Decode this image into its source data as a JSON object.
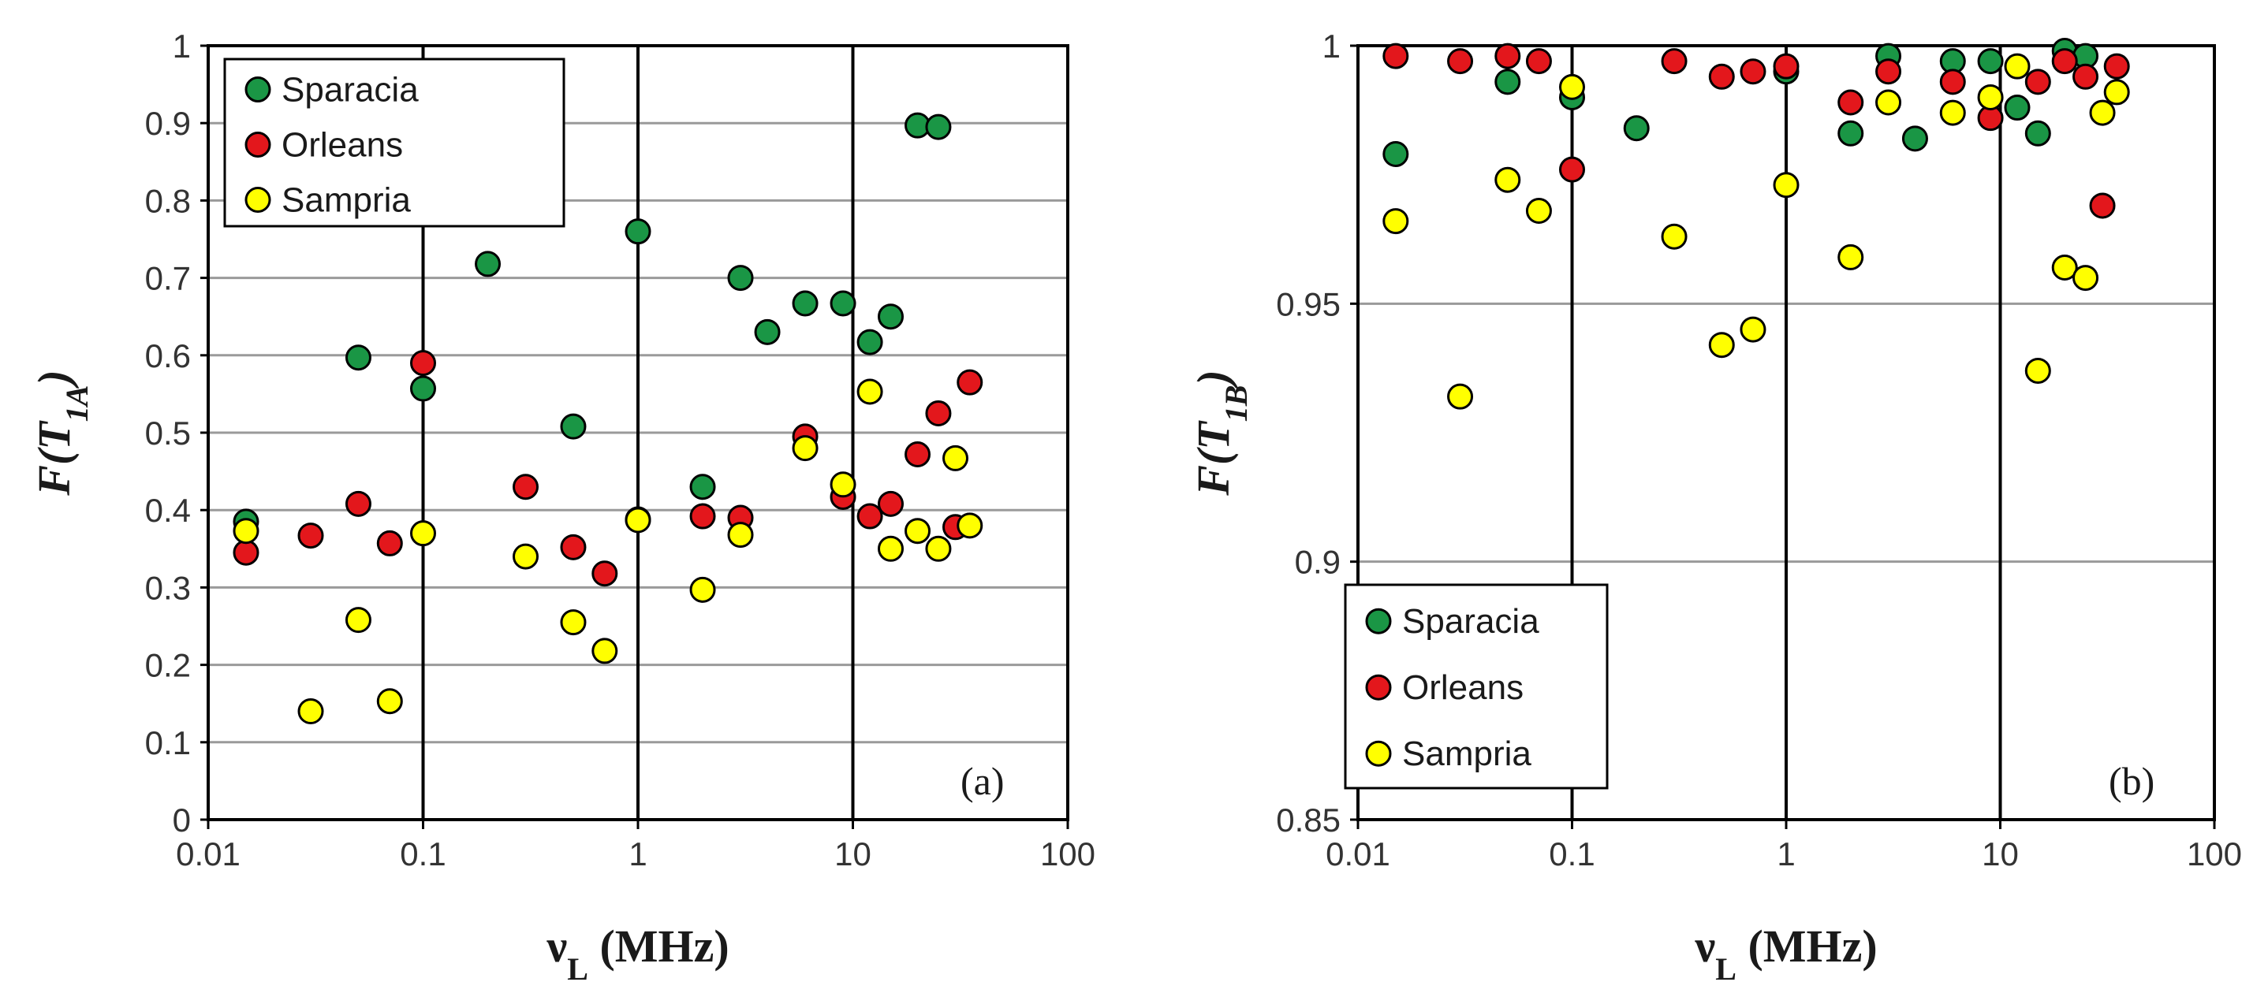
{
  "colors": {
    "Sparacia": "#1a9645",
    "Orleans": "#e3171c",
    "Sampria": "#ffff00",
    "grid": "#9a9a9a",
    "frame": "#000000",
    "marker_edge": "#000000"
  },
  "chart_data": [
    {
      "type": "scatter",
      "panel_label": "(a)",
      "xscale": "log",
      "xlim": [
        0.01,
        100
      ],
      "ylim": [
        0,
        1
      ],
      "xticks": [
        0.01,
        0.1,
        1,
        10,
        100
      ],
      "xtick_labels": [
        "0.01",
        "0.1",
        "1",
        "10",
        "100"
      ],
      "yticks": [
        0,
        0.1,
        0.2,
        0.3,
        0.4,
        0.5,
        0.6,
        0.7,
        0.8,
        0.9,
        1
      ],
      "ytick_labels": [
        "0",
        "0.1",
        "0.2",
        "0.3",
        "0.4",
        "0.5",
        "0.6",
        "0.7",
        "0.8",
        "0.9",
        "1"
      ],
      "xlabel_main": "ν",
      "xlabel_sub": "L",
      "xlabel_rest": " (MHz)",
      "ylabel_pre": "F(T",
      "ylabel_sub": "1A",
      "ylabel_post": ")",
      "legend_position": "top-left",
      "series": [
        {
          "name": "Sparacia",
          "points": [
            [
              0.015,
              0.385
            ],
            [
              0.05,
              0.597
            ],
            [
              0.1,
              0.557
            ],
            [
              0.2,
              0.718
            ],
            [
              0.5,
              0.508
            ],
            [
              1,
              0.76
            ],
            [
              2,
              0.43
            ],
            [
              3,
              0.7
            ],
            [
              4,
              0.63
            ],
            [
              6,
              0.667
            ],
            [
              9,
              0.667
            ],
            [
              12,
              0.617
            ],
            [
              15,
              0.65
            ],
            [
              20,
              0.897
            ],
            [
              25,
              0.895
            ]
          ]
        },
        {
          "name": "Orleans",
          "points": [
            [
              0.015,
              0.345
            ],
            [
              0.03,
              0.367
            ],
            [
              0.05,
              0.408
            ],
            [
              0.07,
              0.357
            ],
            [
              0.1,
              0.59
            ],
            [
              0.3,
              0.43
            ],
            [
              0.5,
              0.352
            ],
            [
              0.7,
              0.318
            ],
            [
              1,
              0.388
            ],
            [
              2,
              0.392
            ],
            [
              3,
              0.39
            ],
            [
              6,
              0.495
            ],
            [
              9,
              0.417
            ],
            [
              12,
              0.392
            ],
            [
              15,
              0.408
            ],
            [
              20,
              0.472
            ],
            [
              25,
              0.525
            ],
            [
              30,
              0.378
            ],
            [
              35,
              0.565
            ]
          ]
        },
        {
          "name": "Sampria",
          "points": [
            [
              0.015,
              0.373
            ],
            [
              0.03,
              0.14
            ],
            [
              0.05,
              0.258
            ],
            [
              0.07,
              0.153
            ],
            [
              0.1,
              0.37
            ],
            [
              0.3,
              0.34
            ],
            [
              0.5,
              0.255
            ],
            [
              0.7,
              0.218
            ],
            [
              1,
              0.387
            ],
            [
              2,
              0.297
            ],
            [
              3,
              0.368
            ],
            [
              6,
              0.48
            ],
            [
              9,
              0.433
            ],
            [
              12,
              0.553
            ],
            [
              15,
              0.35
            ],
            [
              20,
              0.373
            ],
            [
              25,
              0.35
            ],
            [
              30,
              0.467
            ],
            [
              35,
              0.38
            ]
          ]
        }
      ]
    },
    {
      "type": "scatter",
      "panel_label": "(b)",
      "xscale": "log",
      "xlim": [
        0.01,
        100
      ],
      "ylim": [
        0.85,
        1
      ],
      "xticks": [
        0.01,
        0.1,
        1,
        10,
        100
      ],
      "xtick_labels": [
        "0.01",
        "0.1",
        "1",
        "10",
        "100"
      ],
      "yticks": [
        0.85,
        0.9,
        0.95,
        1
      ],
      "ytick_labels": [
        "0.85",
        "0.9",
        "0.95",
        "1"
      ],
      "xlabel_main": "ν",
      "xlabel_sub": "L",
      "xlabel_rest": " (MHz)",
      "ylabel_pre": "F(T",
      "ylabel_sub": "1B",
      "ylabel_post": ")",
      "legend_position": "bottom-left",
      "series": [
        {
          "name": "Sparacia",
          "points": [
            [
              0.015,
              0.979
            ],
            [
              0.05,
              0.993
            ],
            [
              0.1,
              0.99
            ],
            [
              0.2,
              0.984
            ],
            [
              1,
              0.995
            ],
            [
              2,
              0.983
            ],
            [
              3,
              0.998
            ],
            [
              4,
              0.982
            ],
            [
              6,
              0.997
            ],
            [
              9,
              0.997
            ],
            [
              12,
              0.988
            ],
            [
              15,
              0.983
            ],
            [
              20,
              0.999
            ],
            [
              25,
              0.998
            ]
          ]
        },
        {
          "name": "Orleans",
          "points": [
            [
              0.015,
              0.998
            ],
            [
              0.03,
              0.997
            ],
            [
              0.05,
              0.998
            ],
            [
              0.07,
              0.997
            ],
            [
              0.1,
              0.976
            ],
            [
              0.3,
              0.997
            ],
            [
              0.5,
              0.994
            ],
            [
              0.7,
              0.995
            ],
            [
              1,
              0.996
            ],
            [
              2,
              0.989
            ],
            [
              3,
              0.995
            ],
            [
              6,
              0.993
            ],
            [
              9,
              0.986
            ],
            [
              15,
              0.993
            ],
            [
              20,
              0.997
            ],
            [
              25,
              0.994
            ],
            [
              30,
              0.969
            ],
            [
              35,
              0.996
            ]
          ]
        },
        {
          "name": "Sampria",
          "points": [
            [
              0.015,
              0.966
            ],
            [
              0.03,
              0.932
            ],
            [
              0.05,
              0.974
            ],
            [
              0.07,
              0.968
            ],
            [
              0.1,
              0.992
            ],
            [
              0.3,
              0.963
            ],
            [
              0.5,
              0.942
            ],
            [
              0.7,
              0.945
            ],
            [
              1,
              0.973
            ],
            [
              2,
              0.959
            ],
            [
              3,
              0.989
            ],
            [
              6,
              0.987
            ],
            [
              9,
              0.99
            ],
            [
              12,
              0.996
            ],
            [
              15,
              0.937
            ],
            [
              20,
              0.957
            ],
            [
              25,
              0.955
            ],
            [
              30,
              0.987
            ],
            [
              35,
              0.991
            ]
          ]
        }
      ]
    }
  ]
}
